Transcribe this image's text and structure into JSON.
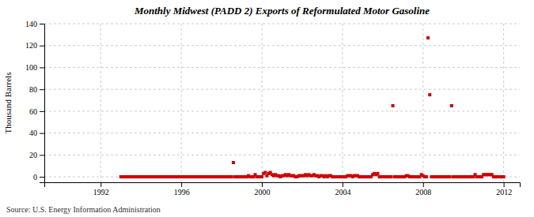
{
  "chart_data": {
    "type": "scatter",
    "title": "Monthly Midwest (PADD 2) Exports of Reformulated Motor Gasoline",
    "y_label": "Thousand Barrels",
    "annotations": [
      "Source: U.S. Energy Information Administration"
    ],
    "xlim": [
      1989.2,
      2012.8
    ],
    "ylim": [
      -5,
      140
    ],
    "xticks": [
      1992,
      1996,
      2000,
      2004,
      2008,
      2012
    ],
    "yticks": [
      0,
      20,
      40,
      60,
      80,
      100,
      120,
      140
    ],
    "grid": true,
    "color": "#cc0000",
    "marker": "square",
    "x": [
      1993.0,
      1993.083,
      1993.167,
      1993.25,
      1993.333,
      1993.417,
      1993.5,
      1993.583,
      1993.667,
      1993.75,
      1993.833,
      1993.917,
      1994.0,
      1994.083,
      1994.167,
      1994.25,
      1994.333,
      1994.417,
      1994.5,
      1994.583,
      1994.667,
      1994.75,
      1994.833,
      1994.917,
      1995.0,
      1995.083,
      1995.167,
      1995.25,
      1995.333,
      1995.417,
      1995.5,
      1995.583,
      1995.667,
      1995.75,
      1995.833,
      1995.917,
      1996.0,
      1996.083,
      1996.167,
      1996.25,
      1996.333,
      1996.417,
      1996.5,
      1996.583,
      1996.667,
      1996.75,
      1996.833,
      1996.917,
      1997.0,
      1997.083,
      1997.167,
      1997.25,
      1997.333,
      1997.417,
      1997.5,
      1997.583,
      1997.667,
      1997.75,
      1997.833,
      1997.917,
      1998.0,
      1998.083,
      1998.167,
      1998.25,
      1998.333,
      1998.417,
      1998.5,
      1998.583,
      1998.667,
      1998.75,
      1998.833,
      1998.917,
      1999.0,
      1999.083,
      1999.167,
      1999.25,
      1999.333,
      1999.417,
      1999.5,
      1999.583,
      1999.667,
      1999.75,
      1999.833,
      1999.917,
      2000.0,
      2000.083,
      2000.167,
      2000.25,
      2000.333,
      2000.417,
      2000.5,
      2000.583,
      2000.667,
      2000.75,
      2000.833,
      2000.917,
      2001.0,
      2001.083,
      2001.167,
      2001.25,
      2001.333,
      2001.417,
      2001.5,
      2001.583,
      2001.667,
      2001.75,
      2001.833,
      2001.917,
      2002.0,
      2002.083,
      2002.167,
      2002.25,
      2002.333,
      2002.417,
      2002.5,
      2002.583,
      2002.667,
      2002.75,
      2002.833,
      2002.917,
      2003.0,
      2003.083,
      2003.167,
      2003.25,
      2003.333,
      2003.417,
      2003.5,
      2003.583,
      2003.667,
      2003.75,
      2003.833,
      2003.917,
      2004.0,
      2004.083,
      2004.167,
      2004.25,
      2004.333,
      2004.417,
      2004.5,
      2004.583,
      2004.667,
      2004.75,
      2004.833,
      2004.917,
      2005.0,
      2005.083,
      2005.167,
      2005.25,
      2005.333,
      2005.417,
      2005.5,
      2005.583,
      2005.667,
      2005.75,
      2005.833,
      2005.917,
      2006.0,
      2006.083,
      2006.167,
      2006.25,
      2006.333,
      2006.417,
      2006.5,
      2006.583,
      2006.667,
      2006.75,
      2006.833,
      2006.917,
      2007.0,
      2007.083,
      2007.167,
      2007.25,
      2007.333,
      2007.417,
      2007.5,
      2007.583,
      2007.667,
      2007.75,
      2007.833,
      2007.917,
      2008.0,
      2008.083,
      2008.167,
      2008.25,
      2008.333,
      2008.417,
      2008.5,
      2008.583,
      2008.667,
      2008.75,
      2008.833,
      2008.917,
      2009.0,
      2009.083,
      2009.167,
      2009.25,
      2009.333,
      2009.417,
      2009.5,
      2009.583,
      2009.667,
      2009.75,
      2009.833,
      2009.917,
      2010.0,
      2010.083,
      2010.167,
      2010.25,
      2010.333,
      2010.417,
      2010.5,
      2010.583,
      2010.667,
      2010.75,
      2010.833,
      2010.917,
      2011.0,
      2011.083,
      2011.167,
      2011.25,
      2011.333,
      2011.417,
      2011.5,
      2011.583,
      2011.667,
      2011.75,
      2011.833,
      2011.917,
      2012.0
    ],
    "values": [
      0,
      0,
      0,
      0,
      0,
      0,
      0,
      0,
      0,
      0,
      0,
      0,
      0,
      0,
      0,
      0,
      0,
      0,
      0,
      0,
      0,
      0,
      0,
      0,
      0,
      0,
      0,
      0,
      0,
      0,
      0,
      0,
      0,
      0,
      0,
      0,
      0,
      0,
      0,
      0,
      0,
      0,
      0,
      0,
      0,
      0,
      0,
      0,
      0,
      0,
      0,
      0,
      0,
      0,
      0,
      0,
      0,
      0,
      0,
      0,
      0,
      0,
      0,
      0,
      0,
      0,
      0,
      13,
      0,
      0,
      0,
      0,
      0,
      0,
      0,
      0,
      1,
      0,
      0,
      0,
      2,
      0,
      0,
      0,
      0,
      3,
      4,
      1,
      3,
      4,
      2,
      1,
      2,
      1,
      1,
      0,
      1,
      1,
      2,
      1,
      2,
      1,
      1,
      1,
      0,
      0,
      1,
      1,
      1,
      1,
      2,
      1,
      2,
      1,
      1,
      2,
      1,
      1,
      0,
      1,
      1,
      0,
      1,
      0,
      1,
      1,
      0,
      0,
      0,
      0,
      0,
      0,
      0,
      0,
      0,
      1,
      1,
      1,
      0,
      1,
      1,
      1,
      0,
      0,
      0,
      0,
      0,
      0,
      0,
      0,
      2,
      3,
      2,
      3,
      0,
      0,
      0,
      0,
      0,
      0,
      0,
      0,
      65,
      0,
      0,
      0,
      0,
      0,
      0,
      0,
      1,
      1,
      0,
      0,
      0,
      0,
      0,
      0,
      0,
      2,
      1,
      0,
      0,
      127,
      75,
      0,
      0,
      0,
      0,
      0,
      0,
      0,
      0,
      0,
      0,
      0,
      0,
      65,
      0,
      0,
      0,
      0,
      0,
      0,
      0,
      0,
      0,
      0,
      0,
      0,
      0,
      2,
      0,
      0,
      0,
      0,
      2,
      2,
      2,
      2,
      2,
      2,
      0,
      0,
      0,
      0,
      0,
      0,
      0
    ]
  }
}
